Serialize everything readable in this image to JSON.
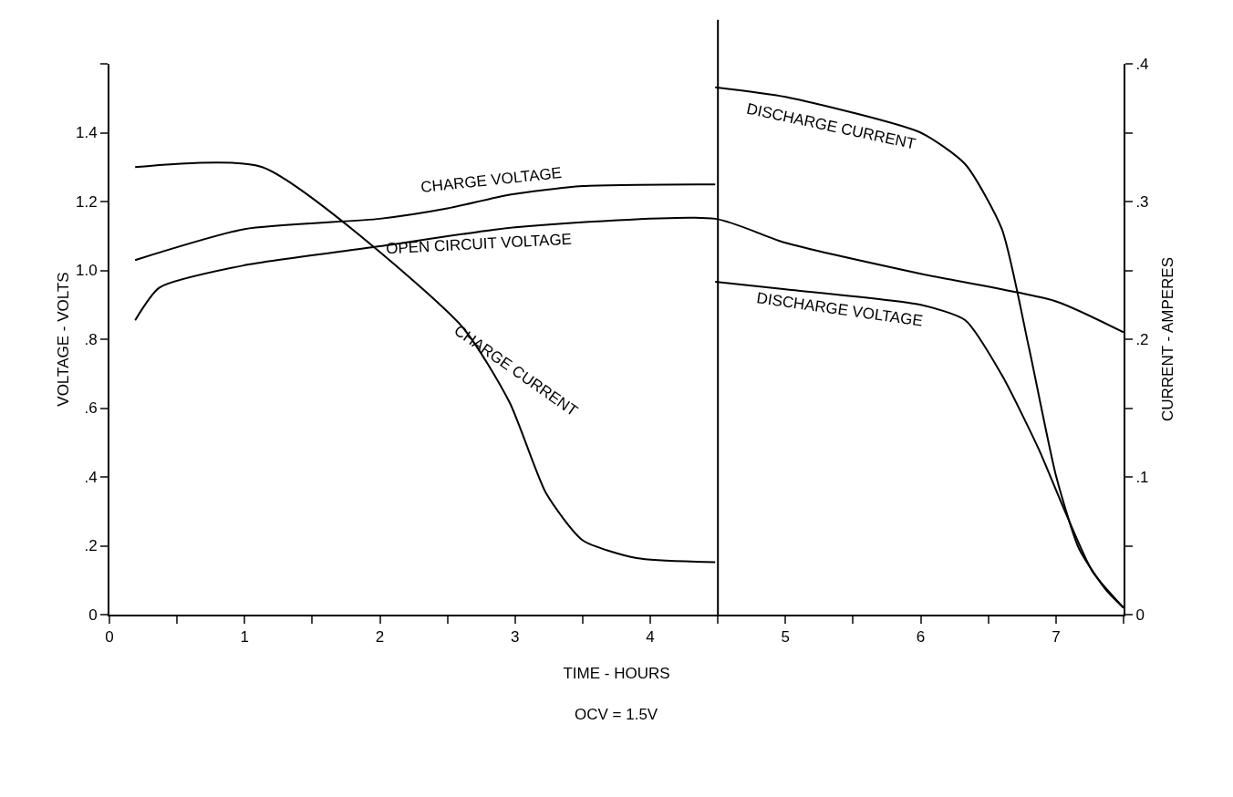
{
  "chart_data": {
    "type": "line",
    "xlabel": "TIME - HOURS",
    "ylabel": "VOLTAGE - VOLTS",
    "y2label": "CURRENT - AMPERES",
    "annotations": [
      "OCV = 1.5V"
    ],
    "xlim": [
      0,
      7.5
    ],
    "xticks": [
      0,
      {
        "value": 0.5,
        "label": null
      },
      1,
      {
        "value": 1.5,
        "label": null
      },
      2,
      {
        "value": 2.5,
        "label": null
      },
      3,
      {
        "value": 3.5,
        "label": null
      },
      4,
      {
        "value": 4.5,
        "label": null
      },
      5,
      {
        "value": 5.5,
        "label": null
      },
      6,
      {
        "value": 6.5,
        "label": null
      },
      7,
      {
        "value": 7.5,
        "label": null
      }
    ],
    "ylim": [
      0,
      1.6
    ],
    "yticks": [
      0,
      {
        "value": 0.2,
        "label": ".2"
      },
      {
        "value": 0.4,
        "label": ".4"
      },
      {
        "value": 0.6,
        "label": ".6"
      },
      {
        "value": 0.8,
        "label": ".8"
      },
      {
        "value": 1,
        "label": "1.0"
      },
      1.2,
      1.4,
      {
        "value": 1.6,
        "label": null
      }
    ],
    "y2lim": [
      0,
      0.4
    ],
    "y2ticks": [
      0,
      {
        "value": 0.05,
        "label": null
      },
      {
        "value": 0.1,
        "label": ".1"
      },
      {
        "value": 0.15,
        "label": null
      },
      {
        "value": 0.2,
        "label": ".2"
      },
      {
        "value": 0.25,
        "label": null
      },
      {
        "value": 0.3,
        "label": ".3"
      },
      {
        "value": 0.35,
        "label": null
      },
      {
        "value": 0.4,
        "label": ".4"
      }
    ],
    "grid": false,
    "legend": false,
    "ref_lines": [
      {
        "axis": "x",
        "value": 4.5,
        "color": "#000000"
      }
    ],
    "series": [
      {
        "name": "CHARGE VOLTAGE",
        "color": "#000000",
        "x": [
          0.19,
          1.0,
          2.0,
          2.5,
          2.96,
          3.5,
          4.48
        ],
        "values": [
          1.03,
          1.12,
          1.15,
          1.18,
          1.22,
          1.245,
          1.25
        ]
      },
      {
        "name": "OPEN CIRCUIT VOLTAGE",
        "color": "#000000",
        "x": [
          0.19,
          0.37,
          1.0,
          2.0,
          3.0,
          4.48,
          5.0,
          6.0,
          7.0,
          7.5
        ],
        "values": [
          0.855,
          0.95,
          1.015,
          1.07,
          1.125,
          1.15,
          1.08,
          0.99,
          0.91,
          0.82
        ]
      },
      {
        "name": "CHARGE CURRENT",
        "color": "#000000",
        "axis": "y2",
        "x": [
          0.19,
          1.13,
          2.6,
          2.96,
          3.23,
          3.5,
          3.9,
          4.48
        ],
        "values": [
          0.325,
          0.325,
          0.21,
          0.154,
          0.088,
          0.054,
          0.041,
          0.038
        ]
      },
      {
        "name": "DISCHARGE CURRENT",
        "color": "#000000",
        "axis": "y2",
        "x": [
          4.48,
          5.0,
          6.0,
          6.33,
          6.6,
          6.8,
          7.0,
          7.17,
          7.37,
          7.5
        ],
        "values": [
          0.383,
          0.376,
          0.35,
          0.327,
          0.28,
          0.194,
          0.101,
          0.048,
          0.018,
          0.005
        ]
      },
      {
        "name": "DISCHARGE VOLTAGE",
        "color": "#000000",
        "x": [
          4.48,
          5.0,
          6.0,
          6.33,
          6.6,
          6.87,
          7.07,
          7.27,
          7.5
        ],
        "values": [
          0.967,
          0.945,
          0.9,
          0.855,
          0.696,
          0.483,
          0.297,
          0.125,
          0.02
        ]
      }
    ]
  }
}
